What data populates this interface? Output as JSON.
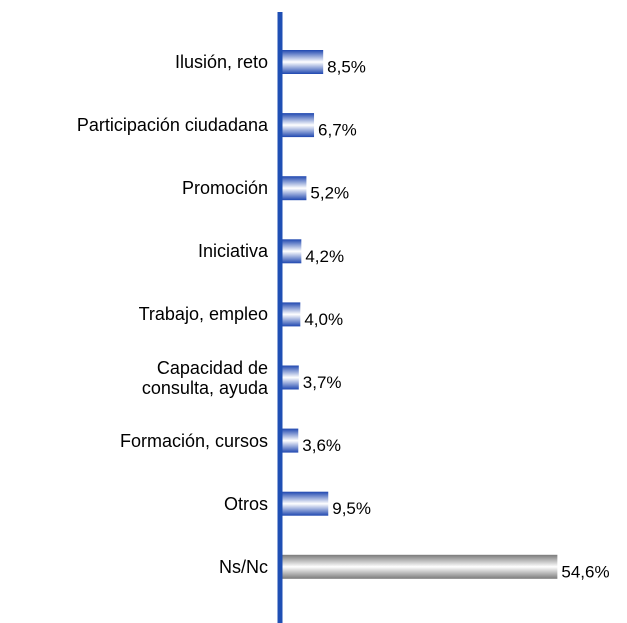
{
  "chart_data": {
    "type": "bar",
    "orientation": "horizontal",
    "categories": [
      "Ilusión, reto",
      "Participación ciudadana",
      "Promoción",
      "Iniciativa",
      "Trabajo, empleo",
      "Capacidad de\nconsulta, ayuda",
      "Formación, cursos",
      "Otros",
      "Ns/Nc"
    ],
    "values": [
      8.5,
      6.7,
      5.2,
      4.2,
      4.0,
      3.7,
      3.6,
      9.5,
      54.6
    ],
    "value_labels": [
      "8,5%",
      "6,7%",
      "5,2%",
      "4,2%",
      "4,0%",
      "3,7%",
      "3,6%",
      "9,5%",
      "54,6%"
    ],
    "colors": [
      "#1f47b0",
      "#1f47b0",
      "#1f47b0",
      "#1f47b0",
      "#1f47b0",
      "#1f47b0",
      "#1f47b0",
      "#1f47b0",
      "#7a7a7a"
    ],
    "axis_color": "#1f4fb4"
  }
}
